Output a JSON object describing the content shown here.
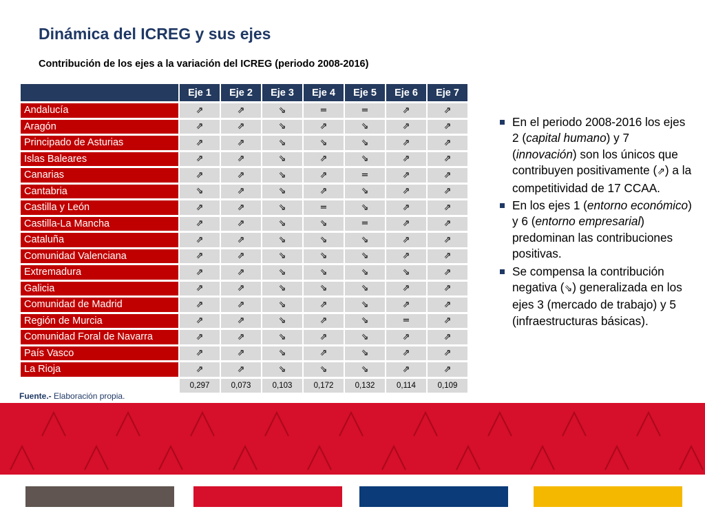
{
  "header": {
    "title": "Dinámica del ICREG y sus ejes",
    "subtitle": "Contribución de los ejes a la variación del ICREG (periodo 2008-2016)"
  },
  "table": {
    "columns": [
      "Eje 1",
      "Eje 2",
      "Eje 3",
      "Eje 4",
      "Eje 5",
      "Eje 6",
      "Eje 7"
    ],
    "rows": [
      {
        "region": "Andalucía",
        "values": [
          "⇗",
          "⇗",
          "⇘",
          "=",
          "=",
          "⇗",
          "⇗"
        ]
      },
      {
        "region": "Aragón",
        "values": [
          "⇗",
          "⇗",
          "⇘",
          "⇗",
          "⇘",
          "⇗",
          "⇗"
        ]
      },
      {
        "region": "Principado de Asturias",
        "values": [
          "⇗",
          "⇗",
          "⇘",
          "⇘",
          "⇘",
          "⇗",
          "⇗"
        ]
      },
      {
        "region": "Islas Baleares",
        "values": [
          "⇗",
          "⇗",
          "⇘",
          "⇗",
          "⇘",
          "⇗",
          "⇗"
        ]
      },
      {
        "region": "Canarias",
        "values": [
          "⇗",
          "⇗",
          "⇘",
          "⇗",
          "=",
          "⇗",
          "⇗"
        ]
      },
      {
        "region": "Cantabria",
        "values": [
          "⇘",
          "⇗",
          "⇘",
          "⇗",
          "⇘",
          "⇗",
          "⇗"
        ]
      },
      {
        "region": "Castilla y León",
        "values": [
          "⇗",
          "⇗",
          "⇘",
          "=",
          "⇘",
          "⇗",
          "⇗"
        ]
      },
      {
        "region": "Castilla-La Mancha",
        "values": [
          "⇗",
          "⇗",
          "⇘",
          "⇘",
          "=",
          "⇗",
          "⇗"
        ]
      },
      {
        "region": "Cataluña",
        "values": [
          "⇗",
          "⇗",
          "⇘",
          "⇘",
          "⇘",
          "⇗",
          "⇗"
        ]
      },
      {
        "region": "Comunidad Valenciana",
        "values": [
          "⇗",
          "⇗",
          "⇘",
          "⇘",
          "⇘",
          "⇗",
          "⇗"
        ]
      },
      {
        "region": "Extremadura",
        "values": [
          "⇗",
          "⇗",
          "⇘",
          "⇘",
          "⇘",
          "⇘",
          "⇗"
        ]
      },
      {
        "region": "Galicia",
        "values": [
          "⇗",
          "⇗",
          "⇘",
          "⇘",
          "⇘",
          "⇗",
          "⇗"
        ]
      },
      {
        "region": "Comunidad de Madrid",
        "values": [
          "⇗",
          "⇗",
          "⇘",
          "⇗",
          "⇘",
          "⇗",
          "⇗"
        ]
      },
      {
        "region": "Región de Murcia",
        "values": [
          "⇗",
          "⇗",
          "⇘",
          "⇗",
          "⇘",
          "=",
          "⇗"
        ]
      },
      {
        "region": "Comunidad Foral de Navarra",
        "values": [
          "⇗",
          "⇗",
          "⇘",
          "⇗",
          "⇘",
          "⇗",
          "⇗"
        ]
      },
      {
        "region": "País Vasco",
        "values": [
          "⇗",
          "⇗",
          "⇘",
          "⇗",
          "⇘",
          "⇗",
          "⇗"
        ]
      },
      {
        "region": "La Rioja",
        "values": [
          "⇗",
          "⇗",
          "⇘",
          "⇘",
          "⇘",
          "⇗",
          "⇗"
        ]
      }
    ],
    "totals": [
      "0,297",
      "0,073",
      "0,103",
      "0,172",
      "0,132",
      "0,114",
      "0,109"
    ]
  },
  "source": {
    "label": "Fuente.-",
    "text": " Elaboración propia."
  },
  "notes": [
    [
      {
        "text": "En el periodo 2008-2016 los ejes 2 (",
        "style": "normal"
      },
      {
        "text": "capital humano",
        "style": "italic"
      },
      {
        "text": ") y 7 (",
        "style": "normal"
      },
      {
        "text": "innovación",
        "style": "italic"
      },
      {
        "text": ") son los únicos que contribuyen positivamente (",
        "style": "normal"
      },
      {
        "text": "⇗",
        "style": "glyph"
      },
      {
        "text": ") a la competitividad de 17 CCAA.",
        "style": "normal"
      }
    ],
    [
      {
        "text": "En los ejes 1 (",
        "style": "normal"
      },
      {
        "text": "entorno económico",
        "style": "italic"
      },
      {
        "text": ") y 6 (",
        "style": "normal"
      },
      {
        "text": "entorno empresarial",
        "style": "italic"
      },
      {
        "text": ") predominan las contribuciones positivas.",
        "style": "normal"
      }
    ],
    [
      {
        "text": "Se compensa la contribución negativa (",
        "style": "normal"
      },
      {
        "text": "⇘",
        "style": "glyph"
      },
      {
        "text": ") generalizada en los ejes 3 (mercado de trabajo) y 5 (infraestructuras básicas).",
        "style": "normal"
      }
    ]
  ],
  "colors": {
    "title": "#1f3864",
    "header_bg": "#243a5e",
    "region_bg": "#c00000",
    "cell_bg": "#d9d9d9",
    "band": "#d60f2a",
    "swatches": [
      "#605550",
      "#d60f2a",
      "#0b3b78",
      "#f5b800"
    ]
  }
}
